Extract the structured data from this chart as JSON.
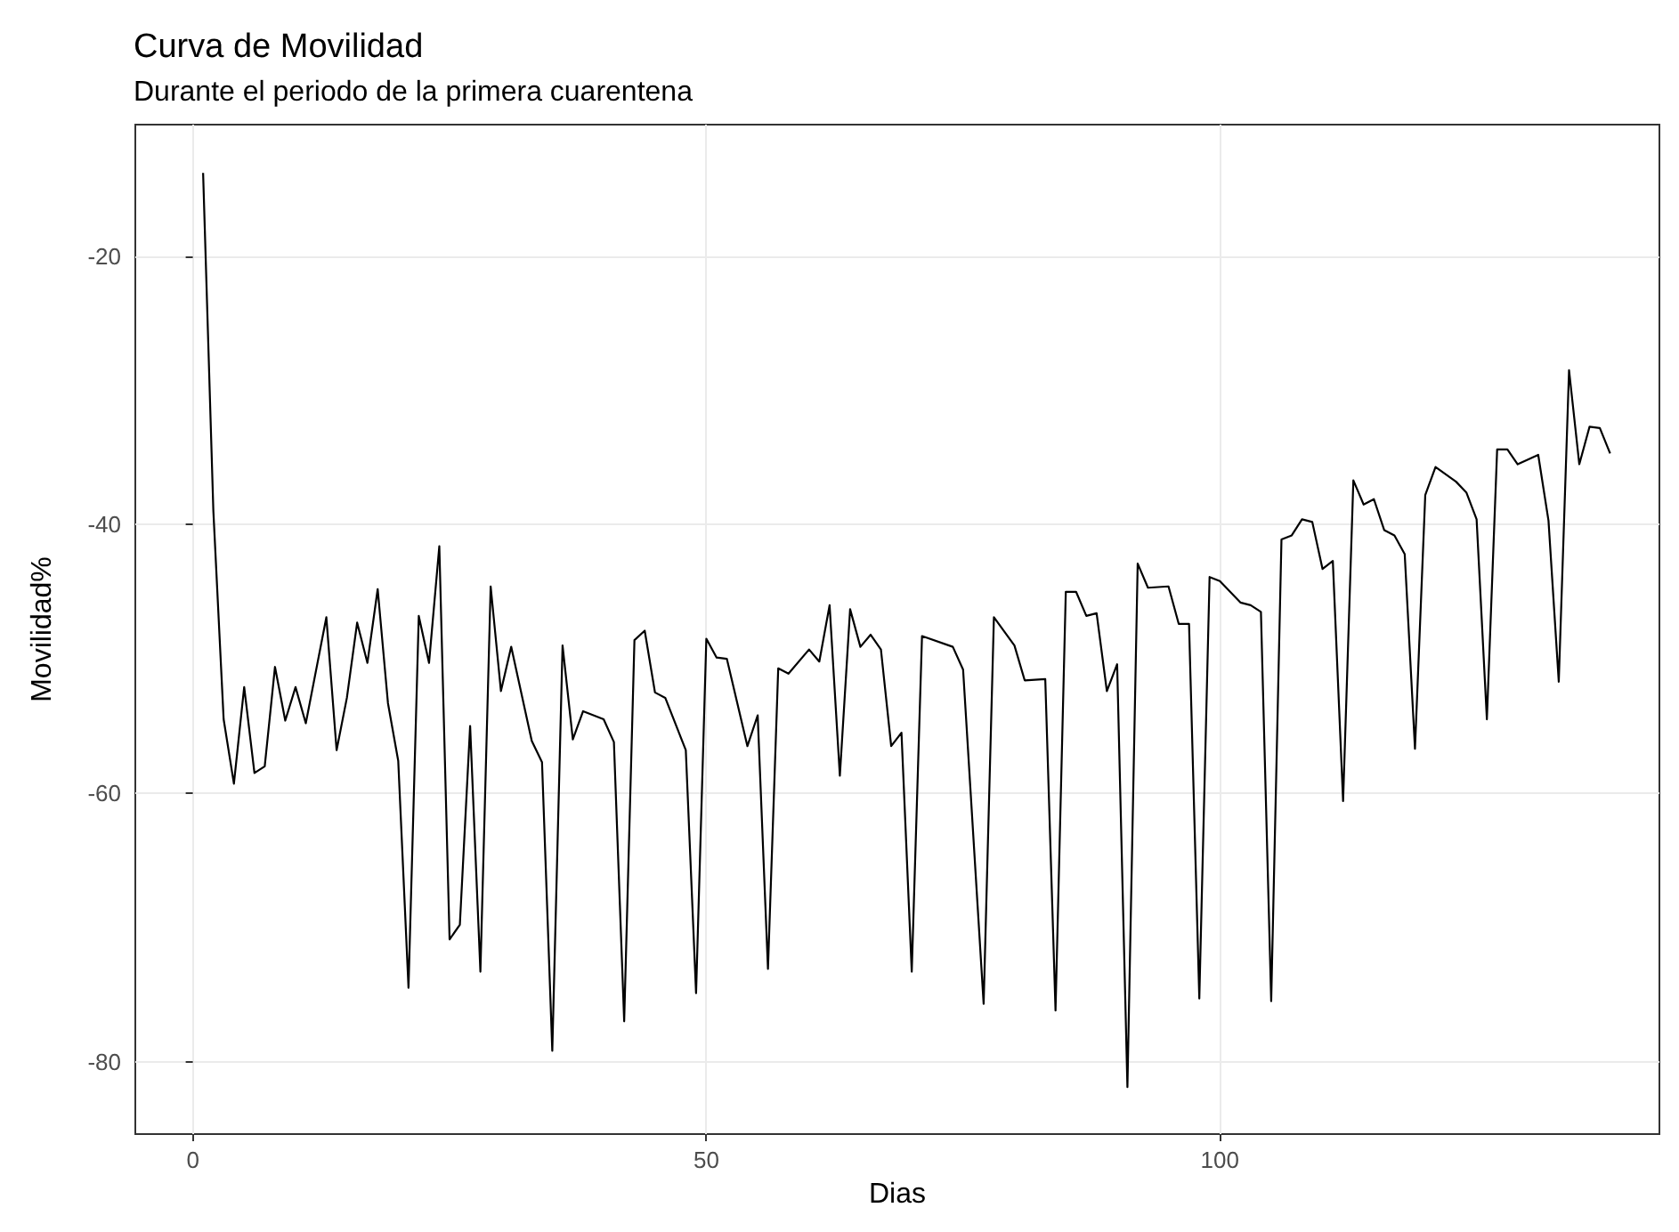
{
  "chart_data": {
    "type": "line",
    "title": "Curva de Movilidad",
    "subtitle": "Durante el periodo de la primera cuarentena",
    "xlabel": "Dias",
    "ylabel": "Movilidad%",
    "xlim": [
      -5.6,
      142.8
    ],
    "ylim": [
      -85.4,
      -10.2
    ],
    "xticks": [
      0,
      50,
      100
    ],
    "yticks": [
      -80,
      -60,
      -40,
      -20
    ],
    "grid": true,
    "marker": "none",
    "line_style": "solid",
    "series": [
      {
        "color": "#000000",
        "x": [
          1,
          2,
          3,
          4,
          5,
          6,
          7,
          8,
          9,
          10,
          11,
          13,
          14,
          15,
          16,
          17,
          18,
          19,
          20,
          21,
          22,
          23,
          24,
          25,
          26,
          27,
          28,
          29,
          30,
          31,
          33,
          34,
          35,
          36,
          37,
          38,
          40,
          41,
          42,
          43,
          44,
          45,
          46,
          48,
          49,
          50,
          51,
          52,
          54,
          55,
          56,
          57,
          58,
          60,
          61,
          62,
          63,
          64,
          65,
          66,
          67,
          68,
          69,
          70,
          71,
          74,
          75,
          77,
          78,
          80,
          81,
          83,
          84,
          85,
          86,
          87,
          88,
          89,
          90,
          91,
          92,
          93,
          95,
          96,
          97,
          98,
          99,
          100,
          102,
          103,
          104,
          105,
          106,
          107,
          108,
          109,
          110,
          111,
          112,
          113,
          114,
          115,
          116,
          117,
          118,
          119,
          120,
          121,
          123,
          124,
          125,
          126,
          127,
          128,
          129,
          131,
          132,
          133,
          134,
          135,
          136,
          137,
          138
        ],
        "values": [
          -13.8,
          -39,
          -54.5,
          -59.3,
          -52.1,
          -58.5,
          -58,
          -50.6,
          -54.6,
          -52.1,
          -54.8,
          -46.9,
          -56.8,
          -52.9,
          -47.3,
          -50.3,
          -44.8,
          -53.3,
          -57.6,
          -74.5,
          -46.8,
          -50.3,
          -41.6,
          -70.9,
          -69.8,
          -55,
          -73.3,
          -44.6,
          -52.4,
          -49.1,
          -56.1,
          -57.7,
          -79.2,
          -49,
          -56,
          -53.9,
          -54.5,
          -56.2,
          -77,
          -48.6,
          -47.9,
          -52.5,
          -52.9,
          -56.8,
          -74.9,
          -48.5,
          -49.9,
          -50,
          -56.5,
          -54.2,
          -73.1,
          -50.7,
          -51.1,
          -49.3,
          -50.2,
          -46,
          -58.7,
          -46.3,
          -49.1,
          -48.2,
          -49.3,
          -56.5,
          -55.5,
          -73.3,
          -48.3,
          -49.1,
          -50.8,
          -75.7,
          -46.9,
          -49,
          -51.6,
          -51.5,
          -76.2,
          -45,
          -45,
          -46.8,
          -46.6,
          -52.4,
          -50.4,
          -81.9,
          -42.9,
          -44.7,
          -44.6,
          -47.4,
          -47.4,
          -75.3,
          -43.9,
          -44.2,
          -45.8,
          -46,
          -46.5,
          -75.5,
          -41.1,
          -40.8,
          -39.6,
          -39.8,
          -43.3,
          -42.7,
          -60.6,
          -36.7,
          -38.5,
          -38.1,
          -40.4,
          -40.8,
          -42.2,
          -56.7,
          -37.8,
          -35.7,
          -36.8,
          -37.6,
          -39.6,
          -54.5,
          -34.4,
          -34.4,
          -35.5,
          -34.8,
          -39.7,
          -51.7,
          -28.5,
          -35.5,
          -32.7,
          -32.8,
          -34.7
        ]
      }
    ]
  }
}
